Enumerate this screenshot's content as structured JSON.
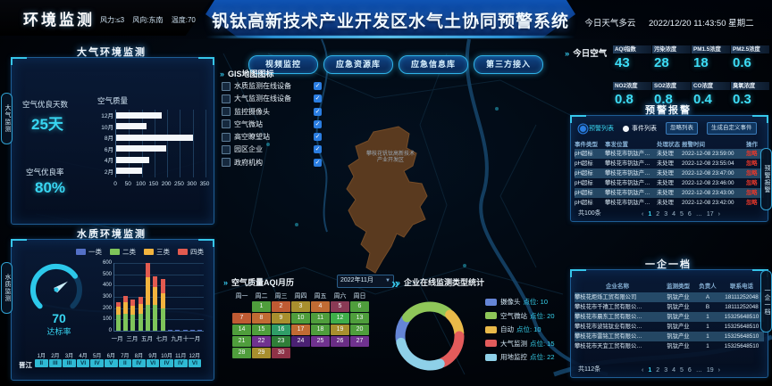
{
  "header": {
    "left_title": "环境监测",
    "wind": "风力:≤3",
    "wind_dir": "风向:东南",
    "temp": "温度:70",
    "main_title": "钒钛高新技术产业开发区水气土协同预警系统",
    "weather": "今日天气多云",
    "datetime": "2022/12/20 11:43:50 星期二"
  },
  "edge_tabs": {
    "left": [
      {
        "label": "大气监测"
      },
      {
        "label": "水质监测"
      }
    ],
    "right": [
      {
        "label": "预警报警"
      },
      {
        "label": "一企一档"
      }
    ]
  },
  "air_panel": {
    "title": "大气环境监测",
    "good_days_label": "空气优良天数",
    "good_days_value": "25天",
    "good_rate_label": "空气优良率",
    "good_rate_value": "80%",
    "chart_title": "空气质量"
  },
  "water_panel": {
    "title": "水质环境监测",
    "gauge_value": "70",
    "gauge_label": "达标率",
    "river_name": "晋江",
    "month_labels": [
      "1月",
      "2月",
      "3月",
      "4月",
      "5月",
      "6月",
      "7月",
      "8月",
      "9月",
      "10月",
      "11月",
      "12月"
    ],
    "river_values": [
      "II",
      "III",
      "III",
      "VI",
      "IV",
      "V",
      "II",
      "IV",
      "VI",
      "IV",
      "IV",
      "VI"
    ]
  },
  "toolbar": {
    "buttons": [
      {
        "label": "视频监控"
      },
      {
        "label": "应急资源库"
      },
      {
        "label": "应急信息库"
      },
      {
        "label": "第三方接入"
      }
    ]
  },
  "gis": {
    "title": "GIS地图图标",
    "items": [
      {
        "label": "水质监测在线设备",
        "checked": true
      },
      {
        "label": "大气监测在线设备",
        "checked": true
      },
      {
        "label": "监控摄像头",
        "checked": true
      },
      {
        "label": "空气微站",
        "checked": true
      },
      {
        "label": "高空瞭望站",
        "checked": true
      },
      {
        "label": "园区企业",
        "checked": true
      },
      {
        "label": "政府机构",
        "checked": true
      }
    ]
  },
  "map": {
    "district_label": "攀枝花钒钛高新技术产业开发区"
  },
  "calendar": {
    "title": "空气质量AQI月历",
    "month_select": "2022年11月",
    "weekdays": [
      "周一",
      "周二",
      "周三",
      "周四",
      "周五",
      "周六",
      "周日"
    ]
  },
  "donut": {
    "title": "企业在线监测类型统计",
    "legend": [
      {
        "label": "摄像头",
        "count_label": "点位: 10",
        "value": 10,
        "color": "#6585d6"
      },
      {
        "label": "空气微站",
        "count_label": "点位: 20",
        "value": 20,
        "color": "#8fc659"
      },
      {
        "label": "自动",
        "count_label": "点位: 10",
        "value": 10,
        "color": "#e9b949"
      },
      {
        "label": "大气监测",
        "count_label": "点位: 15",
        "value": 15,
        "color": "#e25b5b"
      },
      {
        "label": "用地监控",
        "count_label": "点位: 22",
        "value": 22,
        "color": "#8ed0e8"
      }
    ]
  },
  "today_air": {
    "title": "今日空气",
    "stats": [
      {
        "label": "AQI指数",
        "value": "43"
      },
      {
        "label": "污染浓度",
        "value": "28"
      },
      {
        "label": "PM1.5浓度",
        "value": "18"
      },
      {
        "label": "PM2.5浓度",
        "value": "0.6"
      },
      {
        "label": "NO2浓度",
        "value": "0.8"
      },
      {
        "label": "SO2浓度",
        "value": "0.8"
      },
      {
        "label": "CO浓度",
        "value": "0.4"
      },
      {
        "label": "臭氧浓度",
        "value": "0.3"
      }
    ]
  },
  "alarm": {
    "title": "预警报警",
    "radio_warning": "预警列表",
    "radio_event": "事件列表",
    "btn_ignore": "忽略列表",
    "btn_custom": "生成自定义事件",
    "headers": [
      "事件类型",
      "事发位置",
      "处理状态",
      "报警时间",
      "操作"
    ],
    "rows": [
      {
        "type": "pH超标",
        "location": "攀枝花市钒钛产…",
        "status": "未处理",
        "time": "2022-12-08 23:59:00",
        "action": "忽略"
      },
      {
        "type": "pH超标",
        "location": "攀枝花市钒钛产…",
        "status": "未处理",
        "time": "2022-12-08 23:55:04",
        "action": "忽略"
      },
      {
        "type": "pH超标",
        "location": "攀枝花市钒钛产…",
        "status": "未处理",
        "time": "2022-12-08 23:47:00",
        "action": "忽略"
      },
      {
        "type": "pH超标",
        "location": "攀枝花市钒钛产…",
        "status": "未处理",
        "time": "2022-12-08 23:46:00",
        "action": "忽略"
      },
      {
        "type": "pH超标",
        "location": "攀枝花市钒钛产…",
        "status": "未处理",
        "time": "2022-12-08 23:43:00",
        "action": "忽略"
      },
      {
        "type": "pH超标",
        "location": "攀枝花市钒钛产…",
        "status": "未处理",
        "time": "2022-12-08 23:42:00",
        "action": "忽略"
      }
    ],
    "total": "共100条",
    "pages": [
      "‹",
      "1",
      "2",
      "3",
      "4",
      "5",
      "6",
      "…",
      "17",
      "›"
    ],
    "active_page": "1"
  },
  "enterprise": {
    "title": "一企一档",
    "headers": [
      "企业名称",
      "监测类型",
      "负责人",
      "联系电话"
    ],
    "rows": [
      {
        "name": "攀枝花炬烁工贸有限公司",
        "type": "钒钛产业",
        "person": "A",
        "phone": "18111252048"
      },
      {
        "name": "攀枝花市千禧工贸有限公…",
        "type": "钒钛产业",
        "person": "B",
        "phone": "18111252048"
      },
      {
        "name": "攀枝花市晨东工贸有限公…",
        "type": "钒钛产业",
        "person": "1",
        "phone": "15325648510"
      },
      {
        "name": "攀枝花市波铭钛业有限公…",
        "type": "钒钛产业",
        "person": "1",
        "phone": "15325648510"
      },
      {
        "name": "攀枝花市雷铭工贸有限公…",
        "type": "钒钛产业",
        "person": "1",
        "phone": "15325648510"
      },
      {
        "name": "攀枝花市天宜工贸有限公…",
        "type": "钒钛产业",
        "person": "1",
        "phone": "15325648510"
      }
    ],
    "total": "共112条",
    "pages": [
      "‹",
      "1",
      "2",
      "3",
      "4",
      "5",
      "6",
      "…",
      "19",
      "›"
    ],
    "active_page": "1"
  },
  "chart_data": [
    {
      "type": "bar",
      "title": "空气质量",
      "orientation": "horizontal",
      "categories": [
        "12月",
        "10月",
        "8月",
        "6月",
        "4月",
        "2月"
      ],
      "values": [
        180,
        120,
        300,
        195,
        130,
        100
      ],
      "xlim": [
        0,
        350
      ],
      "xticks": [
        0,
        50,
        100,
        150,
        200,
        250,
        300,
        350
      ],
      "bar_color": "#f4f7fa"
    },
    {
      "type": "bar",
      "subtype": "stacked",
      "title": "水质环境监测",
      "categories": [
        "一月",
        "二月",
        "三月",
        "四月",
        "五月",
        "六月",
        "七月",
        "八月",
        "九月",
        "十月",
        "十一月",
        "十二月"
      ],
      "series": [
        {
          "name": "一类",
          "color": "#5470c6",
          "values": [
            0,
            0,
            0,
            0,
            0,
            0,
            0,
            8,
            8,
            8,
            8,
            8
          ]
        },
        {
          "name": "二类",
          "color": "#7ec45a",
          "values": [
            140,
            150,
            140,
            150,
            230,
            230,
            200,
            0,
            0,
            0,
            0,
            0
          ]
        },
        {
          "name": "三类",
          "color": "#f2b33e",
          "values": [
            70,
            100,
            85,
            90,
            240,
            160,
            130,
            0,
            0,
            0,
            0,
            0
          ]
        },
        {
          "name": "四类",
          "color": "#e25b50",
          "values": [
            40,
            55,
            50,
            60,
            130,
            90,
            130,
            0,
            0,
            0,
            0,
            0
          ]
        }
      ],
      "ylim": [
        0,
        600
      ],
      "yticks": [
        0,
        100,
        200,
        300,
        400,
        500,
        600
      ],
      "xtick_labels": [
        "一月",
        "三月",
        "五月",
        "七月",
        "九月",
        "十一月"
      ],
      "legend_position": "top"
    },
    {
      "type": "gauge",
      "value": 70,
      "max": 100,
      "label": "达标率",
      "color": "#2cc8ea"
    },
    {
      "type": "pie",
      "subtype": "donut",
      "title": "企业在线监测类型统计",
      "labels": [
        "摄像头",
        "空气微站",
        "自动",
        "大气监测",
        "用地监控"
      ],
      "values": [
        10,
        20,
        10,
        15,
        22
      ],
      "colors": [
        "#6585d6",
        "#8fc659",
        "#e9b949",
        "#e25b5b",
        "#8ed0e8"
      ]
    },
    {
      "type": "heatmap",
      "subtype": "calendar",
      "title": "空气质量AQI月历",
      "month": "2022年11月",
      "weekdays": [
        "周一",
        "周二",
        "周三",
        "周四",
        "周五",
        "周六",
        "周日"
      ],
      "start_col": 2,
      "days": [
        {
          "day": 1,
          "color": "#4f9e3c"
        },
        {
          "day": 2,
          "color": "#bf5a33"
        },
        {
          "day": 3,
          "color": "#a88f2e"
        },
        {
          "day": 4,
          "color": "#c16b33"
        },
        {
          "day": 5,
          "color": "#8a3a55"
        },
        {
          "day": 6,
          "color": "#4f9e3c"
        },
        {
          "day": 7,
          "color": "#bf5a33"
        },
        {
          "day": 8,
          "color": "#c16b33"
        },
        {
          "day": 9,
          "color": "#a88f2e"
        },
        {
          "day": 10,
          "color": "#4f9e3c"
        },
        {
          "day": 11,
          "color": "#4f9e3c"
        },
        {
          "day": 12,
          "color": "#3fae4a"
        },
        {
          "day": 13,
          "color": "#4f9e3c"
        },
        {
          "day": 14,
          "color": "#4f9e3c"
        },
        {
          "day": 15,
          "color": "#4f9e3c"
        },
        {
          "day": 16,
          "color": "#2f9e68"
        },
        {
          "day": 17,
          "color": "#c16b33"
        },
        {
          "day": 18,
          "color": "#4f9e3c"
        },
        {
          "day": 19,
          "color": "#a88f2e"
        },
        {
          "day": 20,
          "color": "#4f9e3c"
        },
        {
          "day": 21,
          "color": "#4f9e3c"
        },
        {
          "day": 22,
          "color": "#70328f"
        },
        {
          "day": 23,
          "color": "#2f7e38"
        },
        {
          "day": 24,
          "color": "#4a2173"
        },
        {
          "day": 25,
          "color": "#70328f"
        },
        {
          "day": 26,
          "color": "#6a2d85"
        },
        {
          "day": 27,
          "color": "#70328f"
        },
        {
          "day": 28,
          "color": "#4f9e3c"
        },
        {
          "day": 29,
          "color": "#a88f2e"
        },
        {
          "day": 30,
          "color": "#8f3247"
        }
      ]
    }
  ],
  "colors": {
    "accent_cyan": "#38d6f2",
    "panel_border": "#1e5d94",
    "alert_red": "#e8372a",
    "checkbox_blue": "#2a7de1",
    "river_cell": "#2fb9d3"
  }
}
